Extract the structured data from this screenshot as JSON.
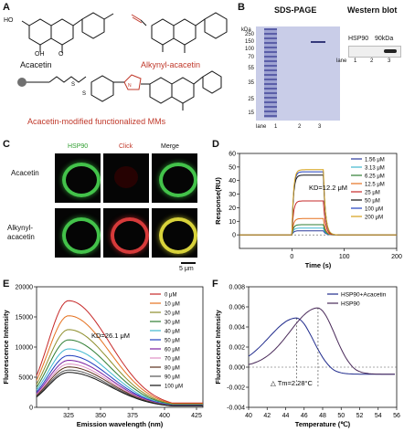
{
  "panels": {
    "A": "A",
    "B": "B",
    "C": "C",
    "D": "D",
    "E": "E",
    "F": "F"
  },
  "panelA": {
    "compound1": "Acacetin",
    "compound2": "Alkynyl-acacetin",
    "compound3": "Acacetin-modified functionalized MMs",
    "atom_labels": {
      "OH": "OH",
      "O": "O",
      "HO": "HO"
    }
  },
  "panelB": {
    "sds_title": "SDS-PAGE",
    "wb_title": "Western blot",
    "kda_label": "kDa",
    "markers": [
      "250",
      "150",
      "100",
      "70",
      "55",
      "35",
      "25",
      "15"
    ],
    "lane_label": "lane",
    "lanes": [
      "1",
      "2",
      "3"
    ],
    "wb_protein": "HSP90",
    "wb_size": "90kDa"
  },
  "panelC": {
    "col_headers": [
      "HSP90",
      "Click",
      "Merge"
    ],
    "row_labels": [
      "Acacetin",
      "Alkynyl-acacetin"
    ],
    "scale_bar": "5 μm"
  },
  "chart_data": [
    {
      "panel": "D",
      "type": "line",
      "xlabel": "Time (s)",
      "ylabel": "Response(RU)",
      "annotation": "KD=12.2 μM",
      "xlim": [
        -100,
        200
      ],
      "ylim": [
        -10,
        60
      ],
      "xticks": [
        0,
        100,
        200
      ],
      "yticks": [
        0,
        10,
        20,
        30,
        40,
        50,
        60
      ],
      "series": [
        {
          "name": "1.56 μM",
          "color": "#2a3a9c",
          "plateau": 3
        },
        {
          "name": "3.13 μM",
          "color": "#3fb7cf",
          "plateau": 5
        },
        {
          "name": "6.25 μM",
          "color": "#2e7d32",
          "plateau": 7.5
        },
        {
          "name": "12.5 μM",
          "color": "#e5711f",
          "plateau": 12
        },
        {
          "name": "25 μM",
          "color": "#c62828",
          "plateau": 25
        },
        {
          "name": "50 μM",
          "color": "#111111",
          "plateau": 44
        },
        {
          "name": "100 μM",
          "color": "#1f3fbf",
          "plateau": 46.5
        },
        {
          "name": "200 μM",
          "color": "#d4a017",
          "plateau": 48
        }
      ]
    },
    {
      "panel": "E",
      "type": "line",
      "xlabel": "Emission wavelength (nm)",
      "ylabel": "Fluorescence Intensity",
      "annotation": "KD=26.1 μM",
      "xlim": [
        300,
        430
      ],
      "ylim": [
        0,
        20000
      ],
      "xticks": [
        325,
        350,
        375,
        400,
        425
      ],
      "yticks": [
        0,
        5000,
        10000,
        15000,
        20000
      ],
      "series": [
        {
          "name": "0 μM",
          "color": "#c62828",
          "peak": 17700
        },
        {
          "name": "10 μM",
          "color": "#e5711f",
          "peak": 15200
        },
        {
          "name": "20 μM",
          "color": "#8d8d2a",
          "peak": 12900
        },
        {
          "name": "30 μM",
          "color": "#2e7d32",
          "peak": 11200
        },
        {
          "name": "40 μM",
          "color": "#3fb7cf",
          "peak": 9700
        },
        {
          "name": "50 μM",
          "color": "#1f3fbf",
          "peak": 8600
        },
        {
          "name": "60 μM",
          "color": "#7b1fa2",
          "peak": 7800
        },
        {
          "name": "70 μM",
          "color": "#e091c4",
          "peak": 7200
        },
        {
          "name": "80 μM",
          "color": "#5a2e1a",
          "peak": 6700
        },
        {
          "name": "90 μM",
          "color": "#555555",
          "peak": 6200
        },
        {
          "name": "100 μM",
          "color": "#111111",
          "peak": 5800
        }
      ]
    },
    {
      "panel": "F",
      "type": "line",
      "xlabel": "Temperature (℃)",
      "ylabel": "Fluorescence Intensity",
      "annotation": "△ Tm=2.28°C",
      "xlim": [
        40,
        56
      ],
      "ylim": [
        -0.004,
        0.008
      ],
      "xticks": [
        40,
        42,
        44,
        46,
        48,
        50,
        52,
        54,
        56
      ],
      "yticks": [
        -0.004,
        -0.002,
        0.0,
        0.002,
        0.004,
        0.006,
        0.008
      ],
      "series": [
        {
          "name": "HSP90+Acacetin",
          "color": "#1f2a8c",
          "tm": 45.2,
          "peak": 0.0049
        },
        {
          "name": "HSP90",
          "color": "#4a2a5a",
          "tm": 47.5,
          "peak": 0.0059
        }
      ]
    }
  ]
}
